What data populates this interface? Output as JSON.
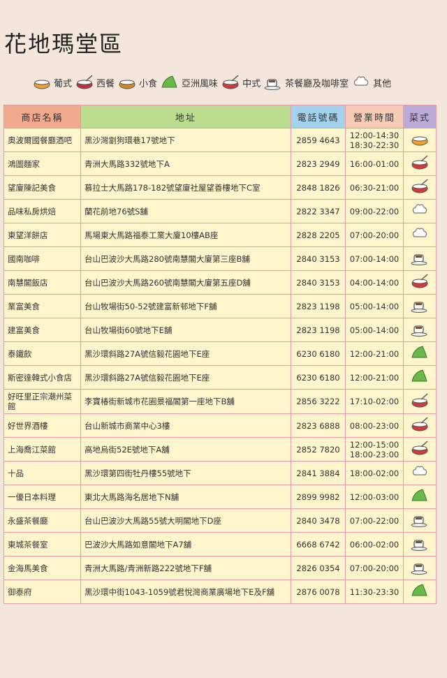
{
  "header": {
    "title": "花地瑪堂區"
  },
  "legend": [
    "葡式",
    "西餐",
    "小食",
    "亞洲風味",
    "中式",
    "茶餐廳及咖啡室",
    "其他"
  ],
  "table": {
    "columns": [
      "商店名稱",
      "地址",
      "電話號碼",
      "營業時間",
      "菜式"
    ],
    "rows": [
      [
        "奧波爾國餐廳酒吧",
        "黑沙灣劏狗環巷17號地下",
        "2859 4643",
        [
          "12:00-14:30",
          "18:30-22:30"
        ],
        0
      ],
      [
        "鴻圖麵家",
        "青洲大馬路332號地下A",
        "2823 2949",
        [
          "16:00-01:00"
        ],
        4
      ],
      [
        "望廈陳記美食",
        "慕拉士大馬路178-182號望廈社屋望善樓地下C室",
        "2848 1826",
        [
          "06:30-21:00"
        ],
        4
      ],
      [
        "品味私房烘焙",
        "蘭花前地76號S舖",
        "2822 3347",
        [
          "09:00-22:00"
        ],
        6
      ],
      [
        "東望洋餅店",
        "馬場東大馬路福泰工業大廈10樓AB座",
        "2828 2205",
        [
          "07:00-20:00"
        ],
        6
      ],
      [
        "國南咖啡",
        "台山巴波沙大馬路280號南慧閣大廈第三座B舖",
        "2840 3153",
        [
          "07:00-14:00"
        ],
        5
      ],
      [
        "南慧閣飯店",
        "台山巴波沙大馬路260號南慧閣大廈第五座D舖",
        "2840 3153",
        [
          "04:00-14:00"
        ],
        4
      ],
      [
        "業富美食",
        "台山牧場街50-52號建富新邨地下F舖",
        "2823 1198",
        [
          "05:00-14:00"
        ],
        5
      ],
      [
        "建富美食",
        "台山牧場街60號地下E舖",
        "2823 1198",
        [
          "05:00-14:00"
        ],
        5
      ],
      [
        "泰鐵飲",
        "黑沙環斜路27A號信毅花園地下E座",
        "6230 6180",
        [
          "12:00-21:00"
        ],
        3
      ],
      [
        "斯密達韓式小食店",
        "黑沙環斜路27A號信毅花園地下E座",
        "6230 6180",
        [
          "12:00-21:00"
        ],
        3
      ],
      [
        "好旺里正宗潮州菜館",
        "李寶椿街新城市花園景福閣第一座地下B舖",
        "2856 3222",
        [
          "17:10-02:00"
        ],
        4
      ],
      [
        "好世界酒樓",
        "台山新城市商業中心3樓",
        "2823 6888",
        [
          "08:00-23:00"
        ],
        4
      ],
      [
        "上海喬江菜館",
        "高地烏街52E號地下A舖",
        "2852 7820",
        [
          "12:00-15:00",
          "18:00-23:00"
        ],
        4
      ],
      [
        "十品",
        "黑沙環第四街牡丹樓55號地下",
        "2841 3884",
        [
          "18:00-02:00"
        ],
        6
      ],
      [
        "一優日本料理",
        "東北大馬路海名居地下N舖",
        "2899 9982",
        [
          "12:00-03:00"
        ],
        3
      ],
      [
        "永盛茶餐廳",
        "台山巴波沙大馬路55號大明閣地下D座",
        "2840 3478",
        [
          "07:00-22:00"
        ],
        5
      ],
      [
        "東城茶餐室",
        "巴波沙大馬路如意閣地下A7舖",
        "6668 6742",
        [
          "06:00-02:00"
        ],
        5
      ],
      [
        "金海馬美食",
        "青洲大馬路/青洲新路222號地下F舖",
        "2826 0354",
        [
          "07:00-20:00"
        ],
        5
      ],
      [
        "御泰府",
        "黑沙環中街1043-1059號君悅灣商業廣場地下E及F舖",
        "2876 0078",
        [
          "11:30-23:30"
        ],
        3
      ]
    ]
  }
}
